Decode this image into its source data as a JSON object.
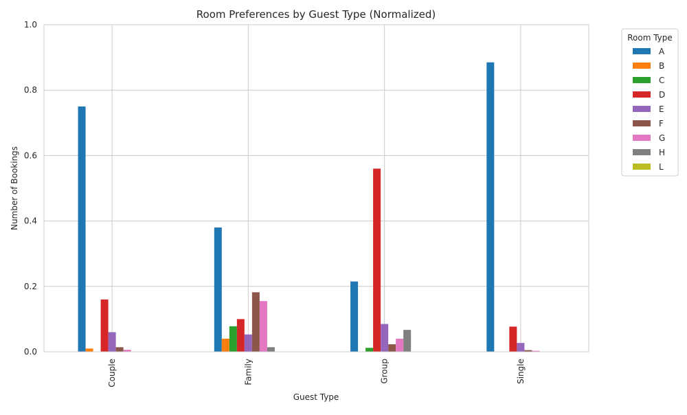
{
  "chart_data": {
    "type": "bar",
    "title": "Room Preferences by Guest Type (Normalized)",
    "xlabel": "Guest Type",
    "ylabel": "Number of Bookings",
    "ylim": [
      0,
      1.0
    ],
    "yticks": [
      "0.0",
      "0.2",
      "0.4",
      "0.6",
      "0.8",
      "1.0"
    ],
    "categories": [
      "Couple",
      "Family",
      "Group",
      "Single"
    ],
    "grid": true,
    "legend": {
      "title": "Room Type",
      "placement": "outside-top-right"
    },
    "series": [
      {
        "name": "A",
        "color": "#1f77b4",
        "values": [
          0.75,
          0.38,
          0.215,
          0.885
        ]
      },
      {
        "name": "B",
        "color": "#ff7f0e",
        "values": [
          0.01,
          0.04,
          0.0,
          0.0
        ]
      },
      {
        "name": "C",
        "color": "#2ca02c",
        "values": [
          0.001,
          0.078,
          0.012,
          0.0
        ]
      },
      {
        "name": "D",
        "color": "#d62728",
        "values": [
          0.16,
          0.1,
          0.56,
          0.077
        ]
      },
      {
        "name": "E",
        "color": "#9467bd",
        "values": [
          0.06,
          0.053,
          0.085,
          0.027
        ]
      },
      {
        "name": "F",
        "color": "#8c564b",
        "values": [
          0.014,
          0.182,
          0.023,
          0.005
        ]
      },
      {
        "name": "G",
        "color": "#e377c2",
        "values": [
          0.006,
          0.155,
          0.04,
          0.003
        ]
      },
      {
        "name": "H",
        "color": "#7f7f7f",
        "values": [
          0.001,
          0.014,
          0.067,
          0.0
        ]
      },
      {
        "name": "L",
        "color": "#bcbd22",
        "values": [
          0.0,
          0.0,
          0.0,
          0.0
        ]
      }
    ]
  }
}
